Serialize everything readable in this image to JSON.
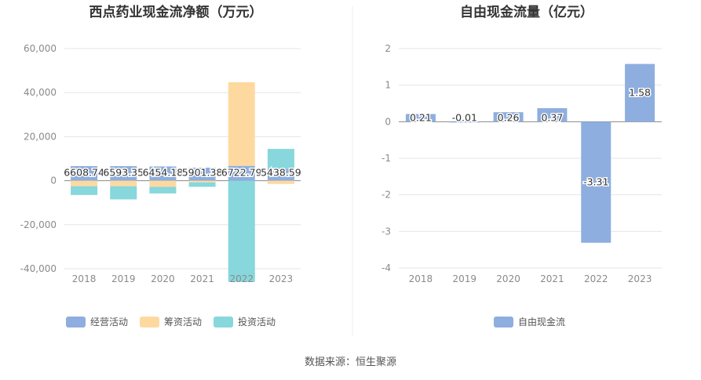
{
  "colors": {
    "operating": "#8eaedf",
    "financing": "#fdd9a0",
    "investing": "#87d7dc",
    "fcf": "#8eaedf",
    "grid": "#e6e6e6",
    "axis_text": "#8a8a8a",
    "title": "#333333",
    "divider": "#ececec"
  },
  "source_text": "数据来源：恒生聚源",
  "chart_data": [
    {
      "type": "bar",
      "title": "西点药业现金流净额（万元）",
      "categories": [
        "2018",
        "2019",
        "2020",
        "2021",
        "2022",
        "2023"
      ],
      "ylim": [
        -40000,
        60000
      ],
      "yticks": [
        60000,
        40000,
        20000,
        0,
        -20000,
        -40000
      ],
      "ytick_labels": [
        "60,000",
        "40,000",
        "20,000",
        "0",
        "-20,000",
        "-40,000"
      ],
      "grid": true,
      "legend": "bottom",
      "stacked": true,
      "series": [
        {
          "name": "经营活动",
          "values": [
            6608.74,
            6593.35,
            6454.18,
            5901.38,
            6722.79,
            5438.59
          ]
        },
        {
          "name": "筹资活动",
          "values": [
            -2500,
            -2500,
            -2800,
            -800,
            38000,
            -1500
          ]
        },
        {
          "name": "投资活动",
          "values": [
            -4000,
            -6000,
            -3000,
            -2000,
            -46000,
            9000
          ]
        }
      ],
      "data_labels": [
        "6608.74",
        "6593.35",
        "6454.18",
        "5901.38",
        "6722.79",
        "5438.59"
      ]
    },
    {
      "type": "bar",
      "title": "自由现金流量（亿元）",
      "categories": [
        "2018",
        "2019",
        "2020",
        "2021",
        "2022",
        "2023"
      ],
      "ylim": [
        -4,
        2
      ],
      "yticks": [
        2,
        1,
        0,
        -1,
        -2,
        -3,
        -4
      ],
      "ytick_labels": [
        "2",
        "1",
        "0",
        "-1",
        "-2",
        "-3",
        "-4"
      ],
      "grid": true,
      "legend": "bottom",
      "series": [
        {
          "name": "自由现金流",
          "values": [
            0.21,
            -0.01,
            0.26,
            0.37,
            -3.31,
            1.58
          ]
        }
      ],
      "data_labels": [
        "0.21",
        "-0.01",
        "0.26",
        "0.37",
        "-3.31",
        "1.58"
      ]
    }
  ]
}
